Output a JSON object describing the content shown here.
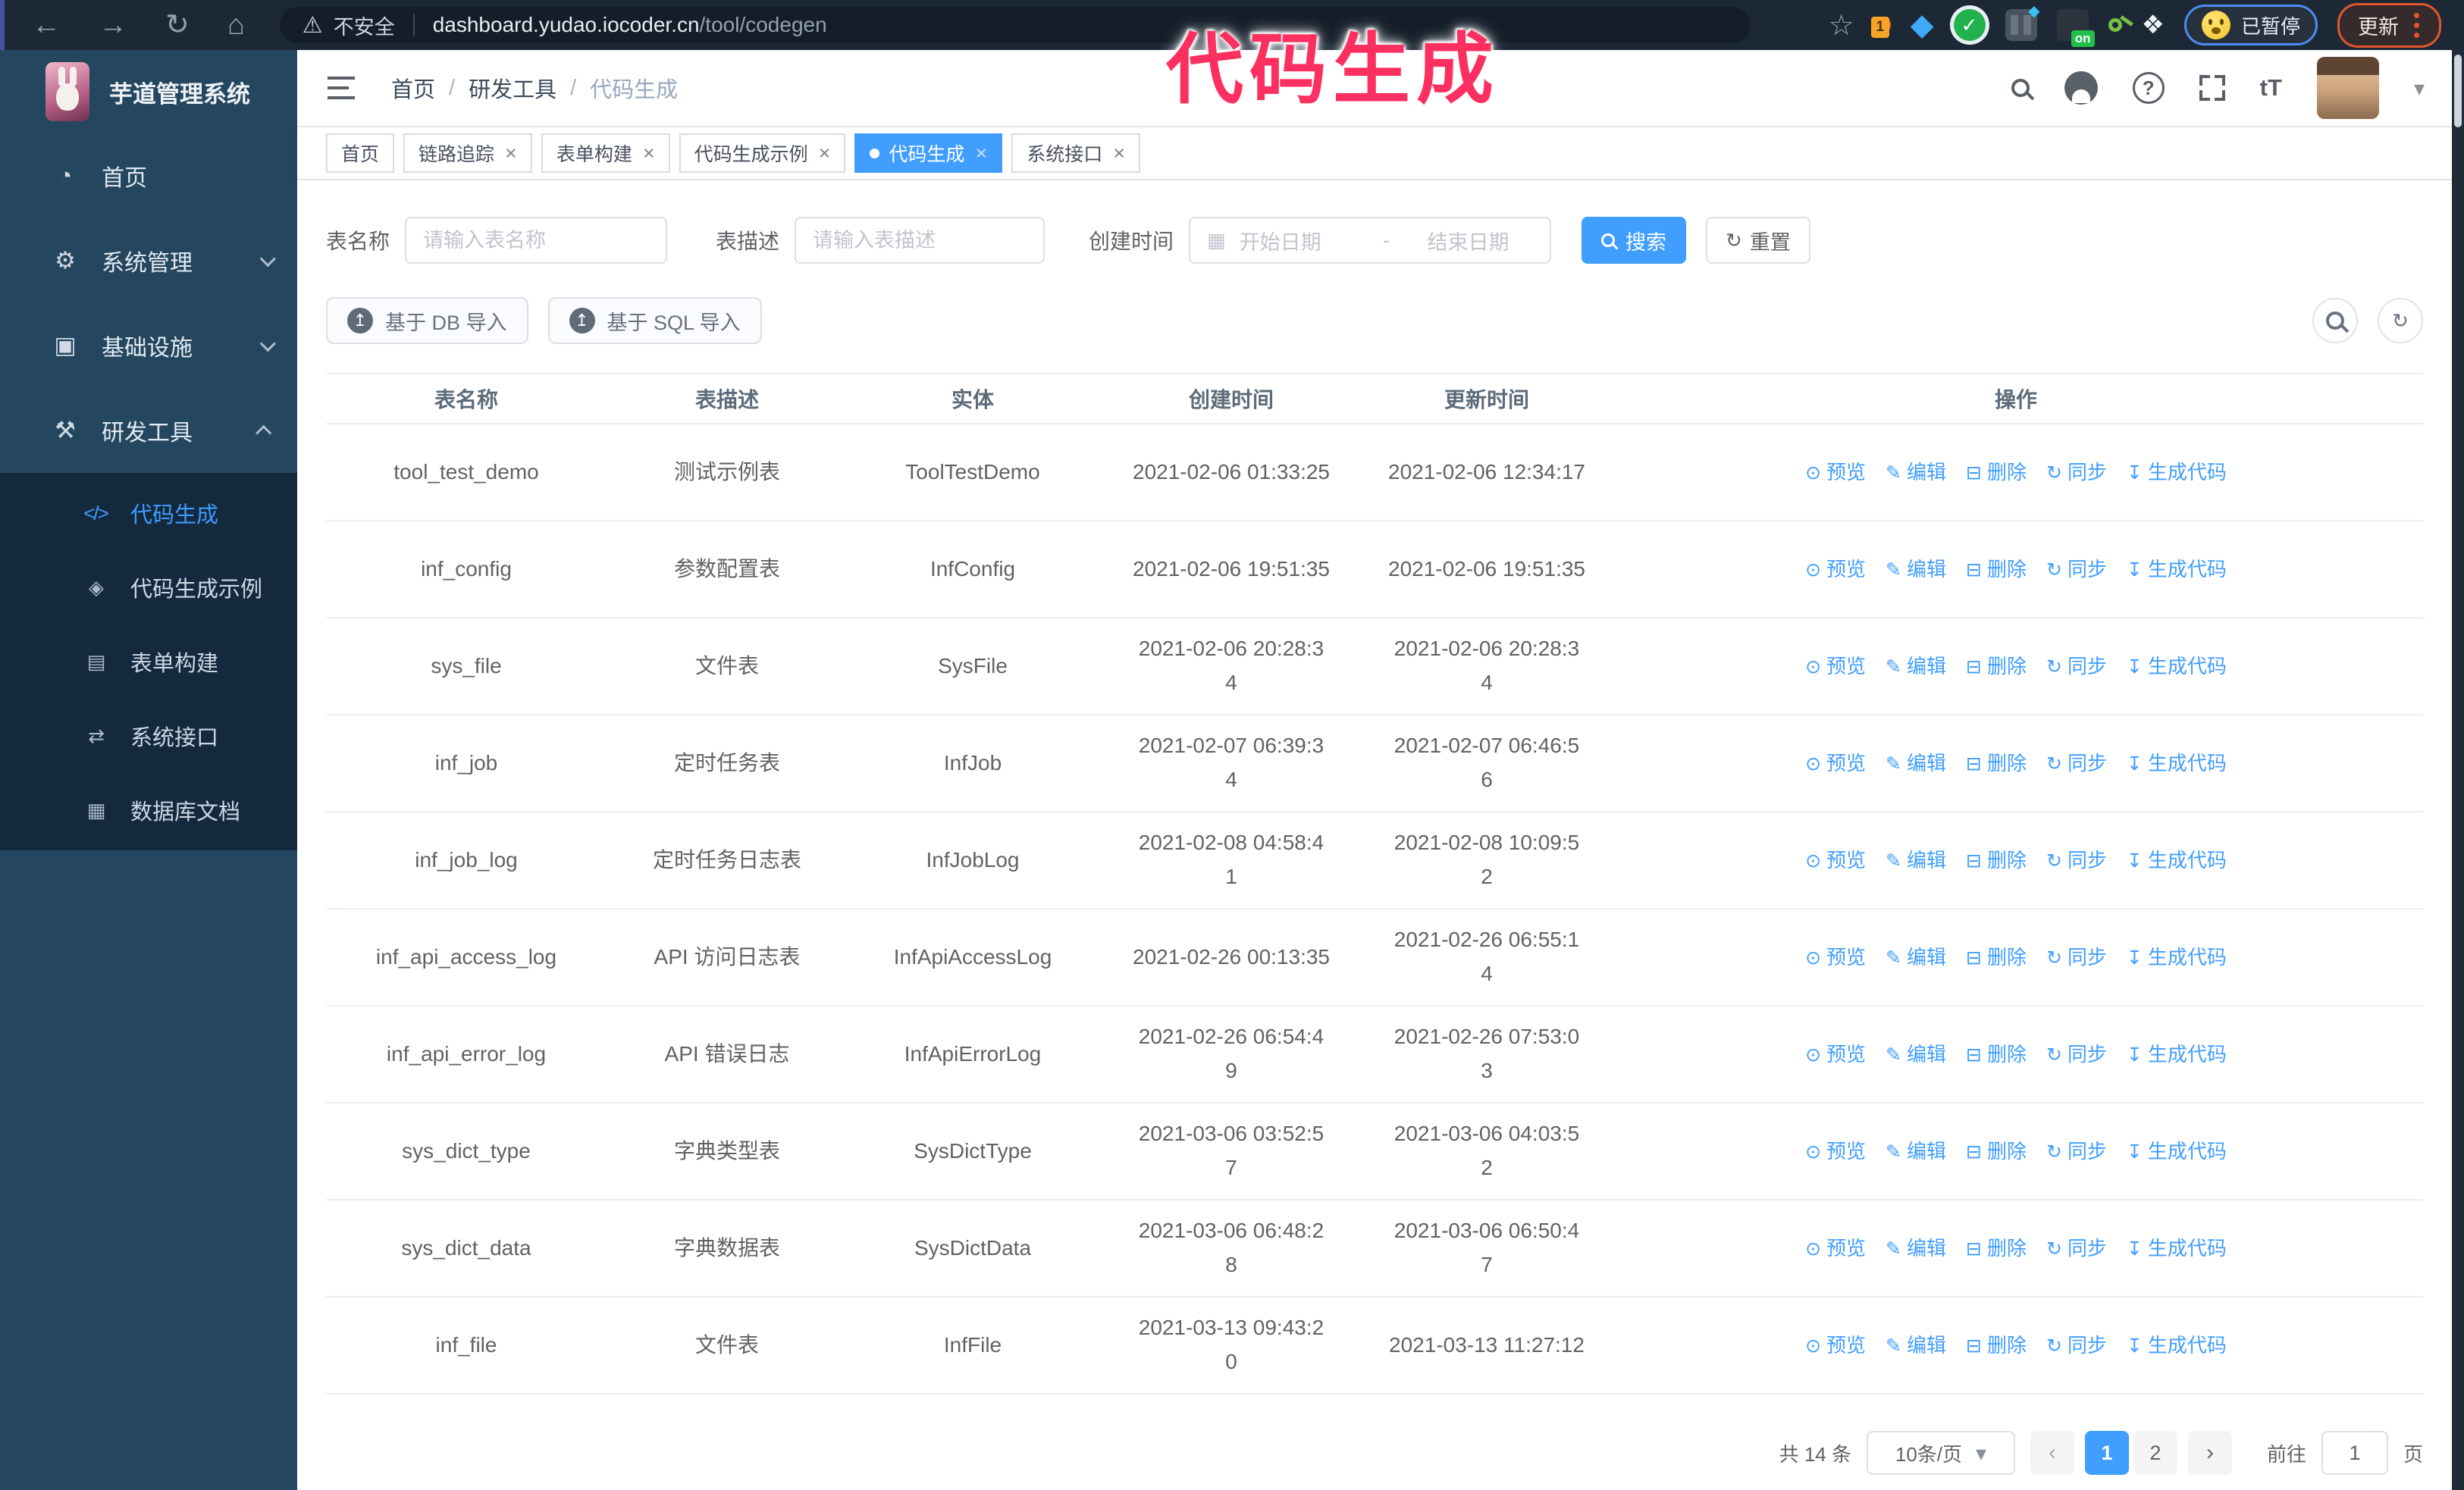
{
  "annotation": {
    "text": "代码生成"
  },
  "browser": {
    "security_label": "不安全",
    "url_host": "dashboard.yudao.iocoder.cn",
    "url_path": "/tool/codegen",
    "extension_badge": "1",
    "on_badge": "on",
    "paused_label": "已暂停",
    "update_label": "更新",
    "nav_icons": [
      "back-icon",
      "forward-icon",
      "reload-icon",
      "home-icon",
      "bookmark-star-icon"
    ],
    "extension_icons": [
      "orange-extension-icon",
      "gem-extension-icon",
      "green-check-extension-icon",
      "sliders-extension-icon",
      "on-badge-extension-icon",
      "key-extension-icon",
      "puzzle-extensions-icon"
    ]
  },
  "sidebar": {
    "title": "芋道管理系统",
    "items": [
      {
        "key": "home",
        "label": "首页",
        "icon": "dashboard-icon"
      },
      {
        "key": "system-management",
        "label": "系统管理",
        "icon": "gear-icon",
        "state": "collapsed"
      },
      {
        "key": "infrastructure",
        "label": "基础设施",
        "icon": "monitor-icon",
        "state": "collapsed"
      },
      {
        "key": "dev-tools",
        "label": "研发工具",
        "icon": "toolbox-icon",
        "state": "expanded",
        "children": [
          {
            "key": "codegen",
            "label": "代码生成",
            "icon": "code-icon",
            "active": true
          },
          {
            "key": "codegen-demo",
            "label": "代码生成示例",
            "icon": "example-icon"
          },
          {
            "key": "form-builder",
            "label": "表单构建",
            "icon": "form-icon"
          },
          {
            "key": "system-api",
            "label": "系统接口",
            "icon": "api-icon"
          },
          {
            "key": "db-doc",
            "label": "数据库文档",
            "icon": "database-icon"
          }
        ]
      }
    ]
  },
  "navbar": {
    "breadcrumb": [
      "首页",
      "研发工具",
      "代码生成"
    ],
    "right_icons": [
      "search-icon",
      "github-icon",
      "help-icon",
      "fullscreen-icon",
      "font-size-icon",
      "user-avatar",
      "chevron-down-icon"
    ]
  },
  "tags_view": {
    "tabs": [
      {
        "key": "home",
        "label": "首页",
        "closable": false,
        "active": false
      },
      {
        "key": "tracing",
        "label": "链路追踪",
        "closable": true,
        "active": false
      },
      {
        "key": "form-builder",
        "label": "表单构建",
        "closable": true,
        "active": false
      },
      {
        "key": "codegen-demo",
        "label": "代码生成示例",
        "closable": true,
        "active": false
      },
      {
        "key": "codegen",
        "label": "代码生成",
        "closable": true,
        "active": true
      },
      {
        "key": "system-api",
        "label": "系统接口",
        "closable": true,
        "active": false
      }
    ]
  },
  "filters": {
    "table_name_label": "表名称",
    "table_name_placeholder": "请输入表名称",
    "table_desc_label": "表描述",
    "table_desc_placeholder": "请输入表描述",
    "create_time_label": "创建时间",
    "start_placeholder": "开始日期",
    "range_separator": "-",
    "end_placeholder": "结束日期",
    "search_label": "搜索",
    "reset_label": "重置"
  },
  "toolbar": {
    "db_import_label": "基于 DB 导入",
    "sql_import_label": "基于 SQL 导入",
    "right_buttons": [
      "show-search-button",
      "refresh-button"
    ]
  },
  "table": {
    "headers": [
      "表名称",
      "表描述",
      "实体",
      "创建时间",
      "更新时间",
      "操作"
    ],
    "action_labels": [
      "预览",
      "编辑",
      "删除",
      "同步",
      "生成代码"
    ],
    "rows": [
      {
        "name": "tool_test_demo",
        "desc": "测试示例表",
        "entity": "ToolTestDemo",
        "created": "2021-02-06 01:33:25",
        "updated": "2021-02-06 12:34:17"
      },
      {
        "name": "inf_config",
        "desc": "参数配置表",
        "entity": "InfConfig",
        "created": "2021-02-06 19:51:35",
        "updated": "2021-02-06 19:51:35"
      },
      {
        "name": "sys_file",
        "desc": "文件表",
        "entity": "SysFile",
        "created": "2021-02-06 20:28:3\n4",
        "updated": "2021-02-06 20:28:3\n4"
      },
      {
        "name": "inf_job",
        "desc": "定时任务表",
        "entity": "InfJob",
        "created": "2021-02-07 06:39:3\n4",
        "updated": "2021-02-07 06:46:5\n6"
      },
      {
        "name": "inf_job_log",
        "desc": "定时任务日志表",
        "entity": "InfJobLog",
        "created": "2021-02-08 04:58:4\n1",
        "updated": "2021-02-08 10:09:5\n2"
      },
      {
        "name": "inf_api_access_log",
        "desc": "API 访问日志表",
        "entity": "InfApiAccessLog",
        "created": "2021-02-26 00:13:35",
        "updated": "2021-02-26 06:55:1\n4"
      },
      {
        "name": "inf_api_error_log",
        "desc": "API 错误日志",
        "entity": "InfApiErrorLog",
        "created": "2021-02-26 06:54:4\n9",
        "updated": "2021-02-26 07:53:0\n3"
      },
      {
        "name": "sys_dict_type",
        "desc": "字典类型表",
        "entity": "SysDictType",
        "created": "2021-03-06 03:52:5\n7",
        "updated": "2021-03-06 04:03:5\n2"
      },
      {
        "name": "sys_dict_data",
        "desc": "字典数据表",
        "entity": "SysDictData",
        "created": "2021-03-06 06:48:2\n8",
        "updated": "2021-03-06 06:50:4\n7"
      },
      {
        "name": "inf_file",
        "desc": "文件表",
        "entity": "InfFile",
        "created": "2021-03-13 09:43:2\n0",
        "updated": "2021-03-13 11:27:12"
      }
    ]
  },
  "pagination": {
    "total_label": "共 14 条",
    "page_size_label": "10条/页",
    "pages": [
      "1",
      "2"
    ],
    "active_page": "1",
    "goto_label": "前往",
    "goto_value": "1",
    "page_unit_label": "页"
  },
  "colors": {
    "accent": "#409eff",
    "annotation_pink": "#fb3060",
    "sidebar_bg": "#24465f",
    "submenu_bg": "#15293e",
    "chrome_bg": "#1d2836"
  }
}
